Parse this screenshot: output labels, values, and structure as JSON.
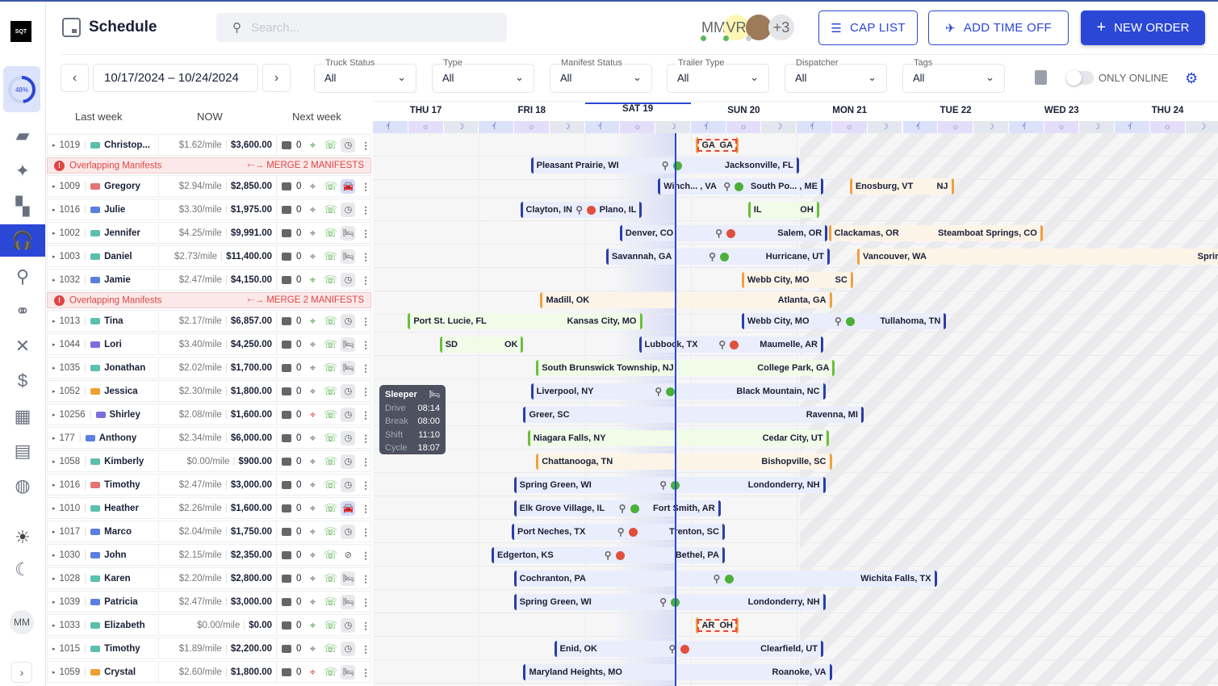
{
  "app": {
    "logo": "SQT",
    "progress_percent": 48,
    "progress_label": "48%",
    "user_initials": "MM"
  },
  "header": {
    "title": "Schedule",
    "search_placeholder": "Search...",
    "users": [
      {
        "label": "MM",
        "bg": "transparent",
        "status": "#5cb85c"
      },
      {
        "label": "VR",
        "bg": "#fdf7b5",
        "status": "#5cb85c"
      },
      {
        "label": "",
        "bg": "#9c7a5a",
        "status": "#ccc"
      },
      {
        "label": "+3",
        "bg": "#e4e5e9",
        "status": ""
      }
    ],
    "cap_list": "CAP LIST",
    "add_time_off": "ADD TIME OFF",
    "new_order": "NEW ORDER"
  },
  "filters": {
    "date_range": "10/17/2024 – 10/24/2024",
    "items": [
      {
        "label": "Truck Status",
        "value": "All"
      },
      {
        "label": "Type",
        "value": "All"
      },
      {
        "label": "Manifest Status",
        "value": "All"
      },
      {
        "label": "Trailer Type",
        "value": "All"
      },
      {
        "label": "Dispatcher",
        "value": "All"
      },
      {
        "label": "Tags",
        "value": "All"
      }
    ],
    "only_online": "ONLY ONLINE"
  },
  "columns": {
    "last_week": "Last week",
    "now": "NOW",
    "next_week": "Next week"
  },
  "days": [
    "THU 17",
    "FRI 18",
    "SAT 19",
    "SUN 20",
    "MON 21",
    "TUE 22",
    "WED 23",
    "THU 24"
  ],
  "timeline": {
    "now_day": 2.85,
    "future_from_day": 4.03,
    "today_index": 2
  },
  "colors": {
    "accent": "#2a47d6",
    "alert": "#e04545",
    "green": "#6abf3a",
    "orange": "#f0a040"
  },
  "overlap": {
    "text": "Overlapping Manifests",
    "action": "MERGE 2 MANIFESTS"
  },
  "tooltip": {
    "title": "Sleeper",
    "rows": [
      {
        "k": "Drive",
        "v": "08:14"
      },
      {
        "k": "Break",
        "v": "08:00"
      },
      {
        "k": "Shift",
        "v": "11:10"
      },
      {
        "k": "Cycle",
        "v": "18:07"
      }
    ]
  },
  "rows": [
    {
      "type": "driver",
      "id": "1019",
      "name": "Christop...",
      "truck": "#5bbfae",
      "rate": "$1.62/mile",
      "amount": "$3,600.00",
      "msgs": "0",
      "loc": "green",
      "status": "clock",
      "bars": [
        {
          "from": "GA",
          "to": "GA",
          "s": 3.05,
          "e": 3.45,
          "c": "orange",
          "dashed": true
        }
      ]
    },
    {
      "type": "overlap",
      "bars": [
        {
          "from": "Pleasant Prairie, WI",
          "to": "Jacksonville, FL",
          "s": 1.49,
          "e": 4.02,
          "c": "blue",
          "icons": "green"
        }
      ]
    },
    {
      "type": "driver",
      "id": "1009",
      "name": "Gregory",
      "truck": "#e57373",
      "rate": "$2.94/mile",
      "amount": "$2,850.00",
      "msgs": "0",
      "loc": "grey",
      "status": "car",
      "bars": [
        {
          "from": "Winch... , VA",
          "to": "South Po... , ME",
          "s": 2.69,
          "e": 4.25,
          "c": "blue",
          "icons": "green"
        },
        {
          "from": "Enosburg, VT",
          "to": "NJ",
          "s": 4.5,
          "e": 5.48,
          "c": "orange"
        }
      ]
    },
    {
      "type": "driver",
      "id": "1016",
      "name": "Julie",
      "truck": "#5b7fe0",
      "rate": "$3.30/mile",
      "amount": "$1,975.00",
      "msgs": "0",
      "loc": "grey",
      "status": "clock",
      "bars": [
        {
          "from": "Clayton, IN",
          "to": "Plano, IL",
          "s": 1.39,
          "e": 2.54,
          "c": "blue",
          "icons": "red"
        },
        {
          "from": "IL",
          "to": "OH",
          "s": 3.54,
          "e": 4.21,
          "c": "green"
        }
      ]
    },
    {
      "type": "driver",
      "id": "1002",
      "name": "Jennifer",
      "truck": "#5bbfae",
      "rate": "$4.25/mile",
      "amount": "$9,991.00",
      "msgs": "0",
      "loc": "grey",
      "status": "bed",
      "bars": [
        {
          "from": "Denver, CO",
          "to": "Salem, OR",
          "s": 2.33,
          "e": 4.29,
          "c": "blue",
          "icons": "red"
        },
        {
          "from": "Clackamas, OR",
          "to": "Steamboat Springs, CO",
          "s": 4.3,
          "e": 6.32,
          "c": "orange"
        }
      ]
    },
    {
      "type": "driver",
      "id": "1003",
      "name": "Daniel",
      "truck": "#5bbfae",
      "rate": "$2.73/mile",
      "amount": "$11,400.00",
      "msgs": "0",
      "loc": "grey",
      "status": "bed",
      "bars": [
        {
          "from": "Savannah, GA",
          "to": "Hurricane, UT",
          "s": 2.2,
          "e": 4.31,
          "c": "blue",
          "icons": "green"
        },
        {
          "from": "Vancouver, WA",
          "to": "Spring",
          "s": 4.57,
          "e": 8.1,
          "c": "orange"
        }
      ]
    },
    {
      "type": "driver",
      "id": "1032",
      "name": "Jamie",
      "truck": "#5b7fe0",
      "rate": "$2.47/mile",
      "amount": "$4,150.00",
      "msgs": "0",
      "loc": "green",
      "status": "clock",
      "bars": [
        {
          "from": "Webb City, MO",
          "to": "SC",
          "s": 3.48,
          "e": 4.53,
          "c": "orange"
        }
      ]
    },
    {
      "type": "overlap",
      "bars": [
        {
          "from": "Madill, OK",
          "to": "Atlanta, GA",
          "s": 1.58,
          "e": 4.33,
          "c": "orange"
        }
      ]
    },
    {
      "type": "driver",
      "id": "1013",
      "name": "Tina",
      "truck": "#5bbfae",
      "rate": "$2.17/mile",
      "amount": "$6,857.00",
      "msgs": "0",
      "loc": "green",
      "status": "clock",
      "bars": [
        {
          "from": "Port St. Lucie, FL",
          "to": "Kansas City, MO",
          "s": 0.33,
          "e": 2.54,
          "c": "green"
        },
        {
          "from": "Webb City, MO",
          "to": "Tullahoma, TN",
          "s": 3.48,
          "e": 5.41,
          "c": "blue",
          "icons": "green"
        }
      ]
    },
    {
      "type": "driver",
      "id": "1044",
      "name": "Lori",
      "truck": "#7b6fe0",
      "rate": "$3.40/mile",
      "amount": "$4,250.00",
      "msgs": "0",
      "loc": "grey",
      "status": "bed",
      "bars": [
        {
          "from": "SD",
          "to": "OK",
          "s": 0.63,
          "e": 1.42,
          "c": "green"
        },
        {
          "from": "Lubbock, TX",
          "to": "Maumelle, AR",
          "s": 2.51,
          "e": 4.25,
          "c": "blue",
          "icons": "red"
        }
      ]
    },
    {
      "type": "driver",
      "id": "1035",
      "name": "Jonathan",
      "truck": "#5bbfae",
      "rate": "$2.02/mile",
      "amount": "$1,700.00",
      "msgs": "0",
      "loc": "grey",
      "status": "bed",
      "bars": [
        {
          "from": "South Brunswick Township, NJ",
          "to": "College Park, GA",
          "s": 1.54,
          "e": 4.36,
          "c": "green"
        }
      ]
    },
    {
      "type": "driver",
      "id": "1052",
      "name": "Jessica",
      "truck": "#f0a030",
      "rate": "$2.30/mile",
      "amount": "$1,800.00",
      "msgs": "0",
      "loc": "grey",
      "status": "clock",
      "bars": [
        {
          "from": "Liverpool, NY",
          "to": "Black Mountain, NC",
          "s": 1.49,
          "e": 4.27,
          "c": "blue",
          "icons": "green"
        }
      ]
    },
    {
      "type": "driver",
      "id": "10256",
      "name": "Shirley",
      "truck": "#7b6fe0",
      "rate": "$2.08/mile",
      "amount": "$1,600.00",
      "msgs": "0",
      "loc": "red",
      "status": "clock",
      "bars": [
        {
          "from": "Greer, SC",
          "to": "Ravenna, MI",
          "s": 1.42,
          "e": 4.63,
          "c": "blue"
        }
      ]
    },
    {
      "type": "driver",
      "id": "177",
      "name": "Anthony",
      "truck": "#5b7fe0",
      "rate": "$2.34/mile",
      "amount": "$6,000.00",
      "msgs": "0",
      "loc": "grey",
      "status": "clock",
      "bars": [
        {
          "from": "Niagara Falls, NY",
          "to": "Cedar City, UT",
          "s": 1.46,
          "e": 4.3,
          "c": "green"
        }
      ]
    },
    {
      "type": "driver",
      "id": "1058",
      "name": "Kimberly",
      "truck": "#5bbfae",
      "rate": "$0.00/mile",
      "amount": "$900.00",
      "msgs": "0",
      "loc": "grey",
      "status": "clock",
      "bars": [
        {
          "from": "Chattanooga, TN",
          "to": "Bishopville, SC",
          "s": 1.54,
          "e": 4.33,
          "c": "orange"
        }
      ]
    },
    {
      "type": "driver",
      "id": "1016",
      "name": "Timothy",
      "truck": "#e57373",
      "rate": "$2.47/mile",
      "amount": "$3,000.00",
      "msgs": "0",
      "loc": "grey",
      "status": "clock",
      "bars": [
        {
          "from": "Spring Green, WI",
          "to": "Londonderry, NH",
          "s": 1.33,
          "e": 4.27,
          "c": "blue",
          "icons": "green"
        }
      ]
    },
    {
      "type": "driver",
      "id": "1010",
      "name": "Heather",
      "truck": "#5bbfae",
      "rate": "$2.26/mile",
      "amount": "$1,600.00",
      "msgs": "0",
      "loc": "grey",
      "status": "car",
      "bars": [
        {
          "from": "Elk Grove Village, IL",
          "to": "Fort Smith, AR",
          "s": 1.33,
          "e": 3.28,
          "c": "blue",
          "icons": "green"
        }
      ]
    },
    {
      "type": "driver",
      "id": "1017",
      "name": "Marco",
      "truck": "#5b7fe0",
      "rate": "$2.04/mile",
      "amount": "$1,750.00",
      "msgs": "0",
      "loc": "grey",
      "status": "clock",
      "bars": [
        {
          "from": "Port Neches, TX",
          "to": "Trenton, SC",
          "s": 1.31,
          "e": 3.32,
          "c": "blue",
          "icons": "red"
        }
      ]
    },
    {
      "type": "driver",
      "id": "1030",
      "name": "John",
      "truck": "#5b7fe0",
      "rate": "$2.15/mile",
      "amount": "$2,350.00",
      "msgs": "0",
      "loc": "grey",
      "status": "off",
      "bars": [
        {
          "from": "Edgerton, KS",
          "to": "Bethel, PA",
          "s": 1.12,
          "e": 3.32,
          "c": "blue",
          "icons": "red"
        }
      ]
    },
    {
      "type": "driver",
      "id": "1028",
      "name": "Karen",
      "truck": "#5bbfae",
      "rate": "$2.20/mile",
      "amount": "$2,800.00",
      "msgs": "0",
      "loc": "grey",
      "status": "bed",
      "bars": [
        {
          "from": "Cochranton, PA",
          "to": "Wichita Falls, TX",
          "s": 1.33,
          "e": 5.32,
          "c": "blue",
          "icons": "green"
        }
      ]
    },
    {
      "type": "driver",
      "id": "1039",
      "name": "Patricia",
      "truck": "#5b7fe0",
      "rate": "$2.47/mile",
      "amount": "$3,000.00",
      "msgs": "0",
      "loc": "grey",
      "status": "bed",
      "bars": [
        {
          "from": "Spring Green, WI",
          "to": "Londonderry, NH",
          "s": 1.33,
          "e": 4.27,
          "c": "blue",
          "icons": "green"
        }
      ]
    },
    {
      "type": "driver",
      "id": "1033",
      "name": "Elizabeth",
      "truck": "#5bbfae",
      "rate": "$0.00/mile",
      "amount": "$0.00",
      "msgs": "0",
      "loc": "green",
      "status": "clock",
      "bars": [
        {
          "from": "AR",
          "to": "OH",
          "s": 3.05,
          "e": 3.45,
          "c": "orange",
          "dashed": true
        }
      ]
    },
    {
      "type": "driver",
      "id": "1015",
      "name": "Timothy",
      "truck": "#5bbfae",
      "rate": "$1.89/mile",
      "amount": "$2,200.00",
      "msgs": "0",
      "loc": "grey",
      "status": "clock",
      "bars": [
        {
          "from": "Enid, OK",
          "to": "Clearfield, UT",
          "s": 1.71,
          "e": 4.25,
          "c": "blue",
          "icons": "red"
        }
      ]
    },
    {
      "type": "driver",
      "id": "1059",
      "name": "Crystal",
      "truck": "#f0a030",
      "rate": "$2.60/mile",
      "amount": "$1,800.00",
      "msgs": "0",
      "loc": "red",
      "status": "bed",
      "bars": [
        {
          "from": "Maryland Heights, MO",
          "to": "Roanoke, VA",
          "s": 1.42,
          "e": 4.33,
          "c": "blue"
        }
      ]
    }
  ]
}
